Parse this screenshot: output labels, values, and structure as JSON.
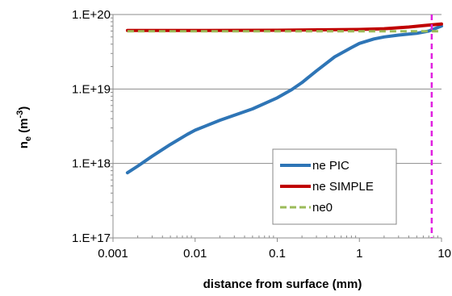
{
  "chart_data": {
    "type": "line",
    "xlabel": "distance from surface (mm)",
    "ylabel_main": "n",
    "ylabel_sub": "e",
    "ylabel_unit_open": " (m",
    "ylabel_unit_sup": "-3",
    "ylabel_unit_close": ")",
    "x_scale": "log",
    "y_scale": "log",
    "xlim": [
      0.001,
      10
    ],
    "ylim": [
      1e+17,
      1e+20
    ],
    "x_ticks": [
      0.001,
      0.01,
      0.1,
      1,
      10
    ],
    "x_tick_labels": [
      "0.001",
      "0.01",
      "0.1",
      "1",
      "10"
    ],
    "y_ticks": [
      1e+17,
      1e+18,
      1e+19,
      1e+20
    ],
    "y_tick_labels": [
      "1.E+17",
      "1.E+18",
      "1.E+19",
      "1.E+20"
    ],
    "grid": "horizontal major gridlines",
    "legend_position": "lower-right",
    "vertical_marker": {
      "x": 7.6,
      "color": "#e020e0",
      "style": "dashed"
    },
    "series": [
      {
        "name": "ne PIC",
        "color": "#2e75b6",
        "style": "solid",
        "x": [
          0.0015,
          0.002,
          0.003,
          0.005,
          0.008,
          0.01,
          0.02,
          0.05,
          0.1,
          0.15,
          0.2,
          0.3,
          0.5,
          0.8,
          1,
          1.5,
          2,
          3,
          5,
          7,
          10
        ],
        "y": [
          7.5e+17,
          9.2e+17,
          1.25e+18,
          1.8e+18,
          2.45e+18,
          2.8e+18,
          3.8e+18,
          5.4e+18,
          7.6e+18,
          9.8e+18,
          1.22e+19,
          1.75e+19,
          2.7e+19,
          3.6e+19,
          4.1e+19,
          4.7e+19,
          5e+19,
          5.3e+19,
          5.6e+19,
          6e+19,
          7e+19
        ]
      },
      {
        "name": "ne SIMPLE",
        "color": "#c00000",
        "style": "solid",
        "x": [
          0.0015,
          0.01,
          0.1,
          1,
          2,
          4,
          6,
          8,
          10
        ],
        "y": [
          6.1e+19,
          6.1e+19,
          6.15e+19,
          6.3e+19,
          6.45e+19,
          6.8e+19,
          7.1e+19,
          7.3e+19,
          7.45e+19
        ]
      },
      {
        "name": "ne0",
        "color": "#9bbb59",
        "style": "dashed",
        "x": [
          0.0015,
          0.01,
          0.1,
          1,
          3,
          5,
          8,
          10
        ],
        "y": [
          5.95e+19,
          5.95e+19,
          5.95e+19,
          5.95e+19,
          5.95e+19,
          5.95e+19,
          5.95e+19,
          5.95e+19
        ]
      }
    ]
  }
}
